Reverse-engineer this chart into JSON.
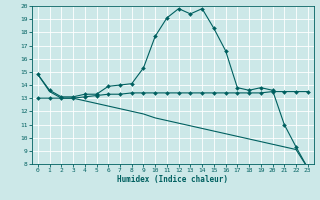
{
  "xlabel": "Humidex (Indice chaleur)",
  "x": [
    0,
    1,
    2,
    3,
    4,
    5,
    6,
    7,
    8,
    9,
    10,
    11,
    12,
    13,
    14,
    15,
    16,
    17,
    18,
    19,
    20,
    21,
    22,
    23
  ],
  "series1": [
    14.8,
    13.6,
    13.1,
    13.1,
    13.3,
    13.3,
    13.9,
    14.0,
    14.1,
    15.3,
    17.7,
    19.1,
    19.8,
    19.4,
    19.8,
    18.3,
    16.6,
    13.8,
    13.6,
    13.8,
    13.6,
    11.0,
    9.3,
    7.7
  ],
  "series2": [
    13.0,
    13.0,
    13.0,
    13.0,
    13.1,
    13.2,
    13.3,
    13.3,
    13.4,
    13.4,
    13.4,
    13.4,
    13.4,
    13.4,
    13.4,
    13.4,
    13.4,
    13.4,
    13.4,
    13.4,
    13.5,
    13.5,
    13.5,
    13.5
  ],
  "series3": [
    14.8,
    13.5,
    13.0,
    13.0,
    12.8,
    12.6,
    12.4,
    12.2,
    12.0,
    11.8,
    11.5,
    11.3,
    11.1,
    10.9,
    10.7,
    10.5,
    10.3,
    10.1,
    9.9,
    9.7,
    9.5,
    9.3,
    9.1,
    7.7
  ],
  "color": "#006060",
  "bg_color": "#cce8e8",
  "grid_color": "#ffffff",
  "ylim": [
    8,
    20
  ],
  "xlim": [
    -0.5,
    23.5
  ],
  "yticks": [
    8,
    9,
    10,
    11,
    12,
    13,
    14,
    15,
    16,
    17,
    18,
    19,
    20
  ],
  "xticks": [
    0,
    1,
    2,
    3,
    4,
    5,
    6,
    7,
    8,
    9,
    10,
    11,
    12,
    13,
    14,
    15,
    16,
    17,
    18,
    19,
    20,
    21,
    22,
    23
  ],
  "marker": "D",
  "markersize": 2.0,
  "linewidth": 0.8,
  "tick_fontsize": 4.5,
  "xlabel_fontsize": 5.5
}
